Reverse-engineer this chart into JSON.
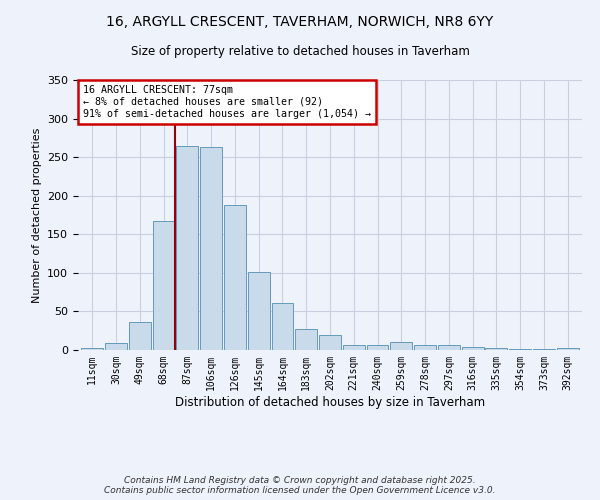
{
  "title": "16, ARGYLL CRESCENT, TAVERHAM, NORWICH, NR8 6YY",
  "subtitle": "Size of property relative to detached houses in Taverham",
  "xlabel": "Distribution of detached houses by size in Taverham",
  "ylabel": "Number of detached properties",
  "bar_labels": [
    "11sqm",
    "30sqm",
    "49sqm",
    "68sqm",
    "87sqm",
    "106sqm",
    "126sqm",
    "145sqm",
    "164sqm",
    "183sqm",
    "202sqm",
    "221sqm",
    "240sqm",
    "259sqm",
    "278sqm",
    "297sqm",
    "316sqm",
    "335sqm",
    "354sqm",
    "373sqm",
    "392sqm"
  ],
  "bar_values": [
    2,
    9,
    36,
    167,
    265,
    263,
    188,
    101,
    61,
    27,
    20,
    6,
    6,
    10,
    7,
    6,
    4,
    2,
    1,
    1,
    3
  ],
  "bar_color": "#c9daea",
  "bar_edge_color": "#6699bb",
  "vline_color": "#990000",
  "annotation_text": "16 ARGYLL CRESCENT: 77sqm\n← 8% of detached houses are smaller (92)\n91% of semi-detached houses are larger (1,054) →",
  "annotation_box_color": "#ffffff",
  "annotation_box_edge": "#cc0000",
  "ylim": [
    0,
    350
  ],
  "footnote": "Contains HM Land Registry data © Crown copyright and database right 2025.\nContains public sector information licensed under the Open Government Licence v3.0.",
  "bg_color": "#eef2fb",
  "grid_color": "#c8cfe0"
}
